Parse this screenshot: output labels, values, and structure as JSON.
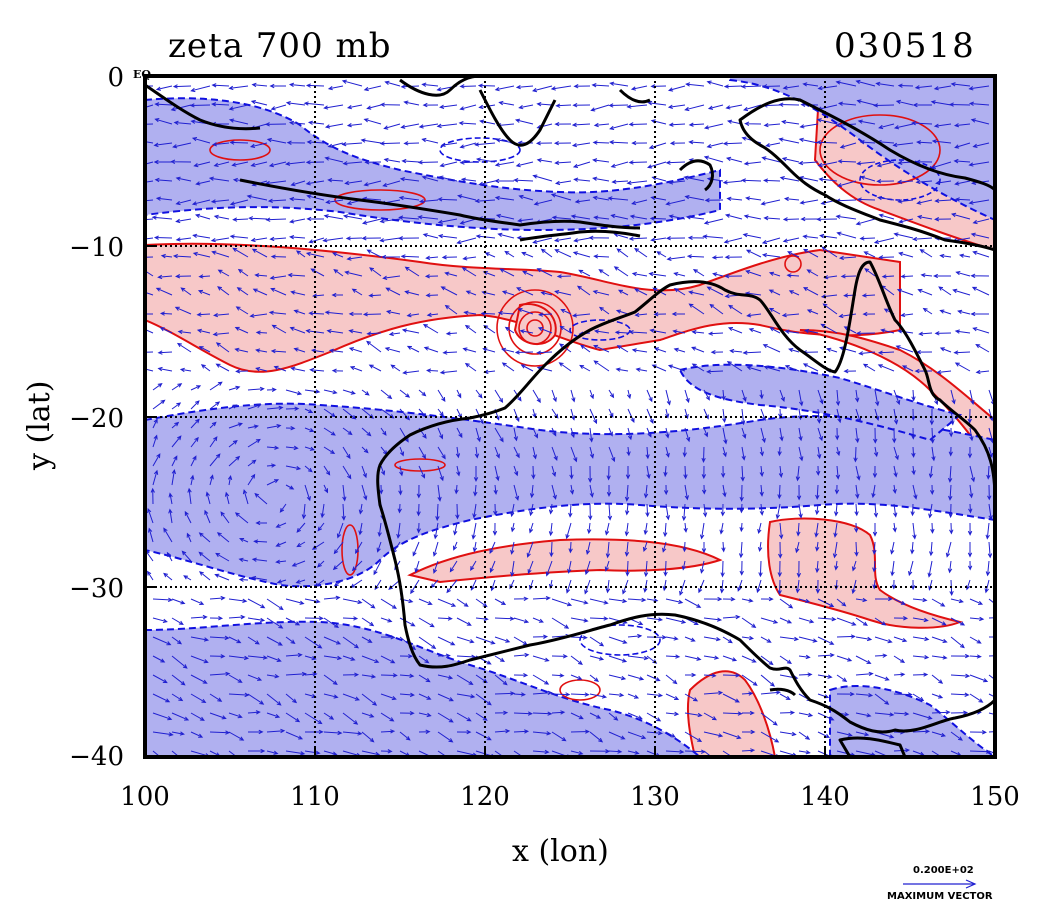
{
  "title": "zeta 700 mb",
  "date": "030518",
  "xlabel": "x (lon)",
  "ylabel": "y (lat)",
  "equator_label": "EQ",
  "x_ticks": [
    "100",
    "110",
    "120",
    "130",
    "140",
    "150"
  ],
  "y_ticks": [
    "0",
    "−10",
    "−20",
    "−30",
    "−40"
  ],
  "vector_legend": {
    "value": "0.200E+02",
    "label": "MAXIMUM VECTOR"
  },
  "colors": {
    "positive_fill": "#f7c8c8",
    "positive_line": "#e01010",
    "negative_fill": "#b0b0f0",
    "negative_line": "#1010e0",
    "coast": "#000000",
    "vectors": "#2020d0"
  },
  "map_extent": {
    "lon": [
      100,
      150
    ],
    "lat": [
      -40,
      0
    ]
  }
}
